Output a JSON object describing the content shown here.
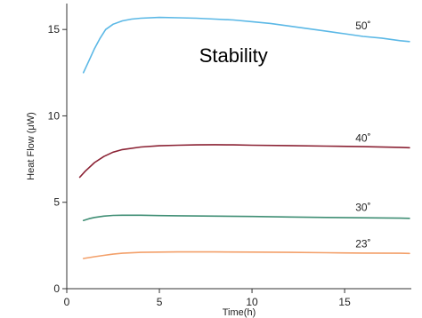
{
  "chart_data": {
    "type": "line",
    "xlabel": "Time(h)",
    "ylabel": "Heat Flow (μW)",
    "xlim": [
      0,
      18.6
    ],
    "ylim": [
      0,
      16.5
    ],
    "x_ticks": [
      0,
      5,
      10,
      15
    ],
    "y_ticks": [
      0,
      5,
      10,
      15
    ],
    "grid": false,
    "annotations": [
      {
        "text": "Stability",
        "x": 9,
        "y": 13.1
      }
    ],
    "series": [
      {
        "name": "50˚",
        "color": "#5bb8e6",
        "label_pos": [
          16.0,
          15.0
        ],
        "x": [
          0.9,
          1.2,
          1.5,
          1.8,
          2.1,
          2.5,
          3.0,
          3.5,
          4.0,
          5.0,
          6.0,
          7.0,
          8.0,
          9.0,
          10.0,
          11.0,
          12.0,
          13.0,
          14.0,
          15.0,
          16.0,
          17.0,
          18.0,
          18.5
        ],
        "y": [
          12.5,
          13.2,
          13.9,
          14.5,
          15.0,
          15.3,
          15.5,
          15.6,
          15.65,
          15.7,
          15.68,
          15.65,
          15.6,
          15.55,
          15.45,
          15.35,
          15.2,
          15.05,
          14.9,
          14.75,
          14.6,
          14.5,
          14.35,
          14.3
        ]
      },
      {
        "name": "40˚",
        "color": "#8b2234",
        "label_pos": [
          16.0,
          8.5
        ],
        "x": [
          0.7,
          1.0,
          1.5,
          2.0,
          2.5,
          3.0,
          4.0,
          5.0,
          6.0,
          7.0,
          8.0,
          9.0,
          10.0,
          12.0,
          14.0,
          16.0,
          18.0,
          18.5
        ],
        "y": [
          6.45,
          6.8,
          7.3,
          7.65,
          7.9,
          8.05,
          8.2,
          8.27,
          8.3,
          8.32,
          8.33,
          8.32,
          8.3,
          8.28,
          8.25,
          8.22,
          8.18,
          8.16
        ]
      },
      {
        "name": "30˚",
        "color": "#3f8e74",
        "label_pos": [
          16.0,
          4.5
        ],
        "x": [
          0.9,
          1.2,
          1.5,
          2.0,
          2.5,
          3.0,
          4.0,
          5.0,
          6.0,
          8.0,
          10.0,
          12.0,
          14.0,
          16.0,
          18.0,
          18.5
        ],
        "y": [
          3.95,
          4.05,
          4.12,
          4.2,
          4.24,
          4.25,
          4.25,
          4.23,
          4.22,
          4.2,
          4.18,
          4.15,
          4.12,
          4.1,
          4.08,
          4.07
        ]
      },
      {
        "name": "23˚",
        "color": "#f3a06a",
        "label_pos": [
          16.0,
          2.4
        ],
        "x": [
          0.9,
          1.5,
          2.0,
          2.5,
          3.0,
          4.0,
          5.0,
          6.0,
          8.0,
          10.0,
          12.0,
          14.0,
          16.0,
          18.0,
          18.5
        ],
        "y": [
          1.75,
          1.85,
          1.93,
          2.0,
          2.05,
          2.1,
          2.12,
          2.13,
          2.13,
          2.12,
          2.1,
          2.08,
          2.06,
          2.05,
          2.04
        ]
      }
    ]
  }
}
